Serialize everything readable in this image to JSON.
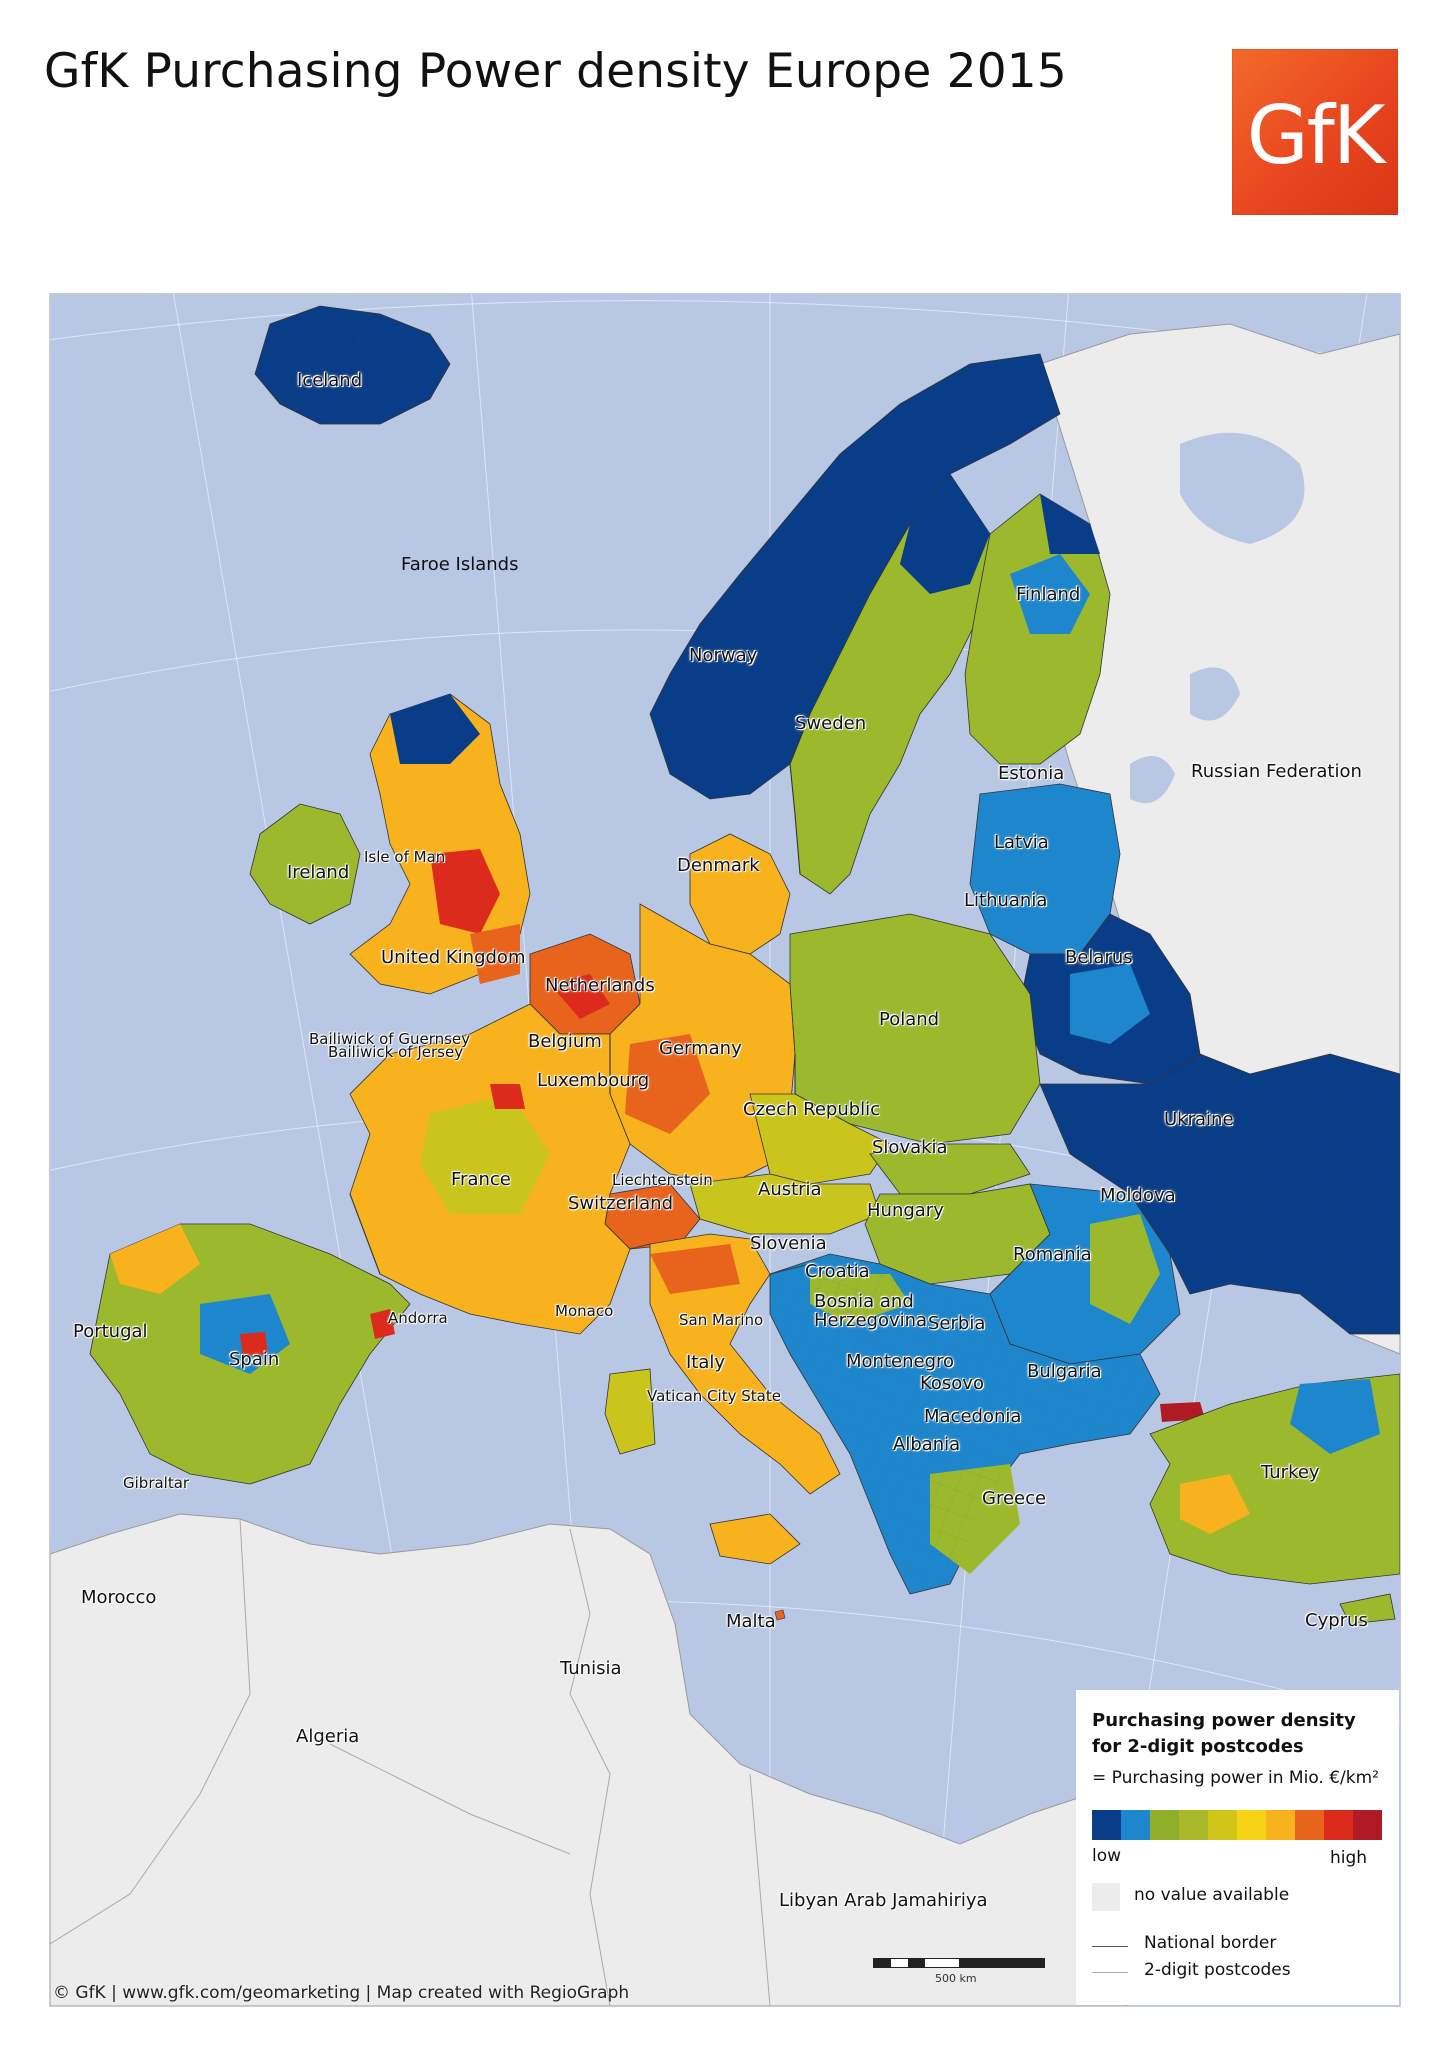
{
  "title": "GfK Purchasing Power density Europe 2015",
  "logo_text": "GfK",
  "colors": {
    "sea": "#b8c7e4",
    "no_value": "#ececec",
    "logo": "#e8461f"
  },
  "map": {
    "countries": [
      {
        "label": "Iceland",
        "color": "#0a3d88"
      },
      {
        "label": "Faroe Islands",
        "color": ""
      },
      {
        "label": "Norway",
        "color": "#0a3d88"
      },
      {
        "label": "Sweden",
        "color": "#9cb82c"
      },
      {
        "label": "Finland",
        "color": "#9cb82c"
      },
      {
        "label": "Russian Federation",
        "color": "#ececec"
      },
      {
        "label": "Estonia",
        "color": "#1e86cc"
      },
      {
        "label": "Latvia",
        "color": "#1e86cc"
      },
      {
        "label": "Lithuania",
        "color": "#1e86cc"
      },
      {
        "label": "Belarus",
        "color": "#0a3d88"
      },
      {
        "label": "Denmark",
        "color": "#f7b21e"
      },
      {
        "label": "Ireland",
        "color": "#9cb82c"
      },
      {
        "label": "Isle of Man",
        "color": ""
      },
      {
        "label": "United Kingdom",
        "color": "#e8641c"
      },
      {
        "label": "Netherlands",
        "color": "#e8641c"
      },
      {
        "label": "Belgium",
        "color": "#e8641c"
      },
      {
        "label": "Germany",
        "color": "#f7b21e"
      },
      {
        "label": "Poland",
        "color": "#9cb82c"
      },
      {
        "label": "Bailiwick of Guernsey",
        "color": ""
      },
      {
        "label": "Bailiwick of Jersey",
        "color": ""
      },
      {
        "label": "Luxembourg",
        "color": "#e8641c"
      },
      {
        "label": "Czech Republic",
        "color": "#c9c51c"
      },
      {
        "label": "Ukraine",
        "color": "#0a3d88"
      },
      {
        "label": "Slovakia",
        "color": "#9cb82c"
      },
      {
        "label": "France",
        "color": "#f7b21e"
      },
      {
        "label": "Liechtenstein",
        "color": ""
      },
      {
        "label": "Austria",
        "color": "#c9c51c"
      },
      {
        "label": "Switzerland",
        "color": "#e8641c"
      },
      {
        "label": "Moldova",
        "color": "#0a3d88"
      },
      {
        "label": "Hungary",
        "color": "#9cb82c"
      },
      {
        "label": "Slovenia",
        "color": "#c9c51c"
      },
      {
        "label": "Romania",
        "color": "#1e86cc"
      },
      {
        "label": "Croatia",
        "color": "#9cb82c"
      },
      {
        "label": "Bosnia and Herzegovina",
        "color": "#1e86cc"
      },
      {
        "label": "Serbia",
        "color": "#1e86cc"
      },
      {
        "label": "Andorra",
        "color": ""
      },
      {
        "label": "Monaco",
        "color": ""
      },
      {
        "label": "San Marino",
        "color": ""
      },
      {
        "label": "Portugal",
        "color": "#9cb82c"
      },
      {
        "label": "Spain",
        "color": "#9cb82c"
      },
      {
        "label": "Italy",
        "color": "#f7b21e"
      },
      {
        "label": "Montenegro",
        "color": "#1e86cc"
      },
      {
        "label": "Bulgaria",
        "color": "#1e86cc"
      },
      {
        "label": "Kosovo",
        "color": "#1e86cc"
      },
      {
        "label": "Vatican City State",
        "color": ""
      },
      {
        "label": "Macedonia",
        "color": "#1e86cc"
      },
      {
        "label": "Albania",
        "color": "#1e86cc"
      },
      {
        "label": "Turkey",
        "color": "#9cb82c"
      },
      {
        "label": "Gibraltar",
        "color": ""
      },
      {
        "label": "Greece",
        "color": "#9cb82c"
      },
      {
        "label": "Morocco",
        "color": "#ececec"
      },
      {
        "label": "Malta",
        "color": ""
      },
      {
        "label": "Cyprus",
        "color": "#9cb82c"
      },
      {
        "label": "Tunisia",
        "color": "#ececec"
      },
      {
        "label": "Algeria",
        "color": "#ececec"
      },
      {
        "label": "Libyan Arab Jamahiriya",
        "color": "#ececec"
      }
    ]
  },
  "legend": {
    "title_line1": "Purchasing power density",
    "title_line2": "for 2-digit postcodes",
    "subtitle": "= Purchasing power in Mio. €/km²",
    "ramp": [
      "#0a3d88",
      "#1e86cc",
      "#8fae2a",
      "#a9b92a",
      "#d0c61a",
      "#f7d315",
      "#f7b21e",
      "#e8641c",
      "#dc2a1c",
      "#b01a25"
    ],
    "low_label": "low",
    "high_label": "high",
    "no_value_label": "no value available",
    "national_border_label": "National border",
    "postcodes_label": "2-digit postcodes"
  },
  "scale_label": "500 km",
  "footer": "© GfK | www.gfk.com/geomarketing | Map created with RegioGraph"
}
